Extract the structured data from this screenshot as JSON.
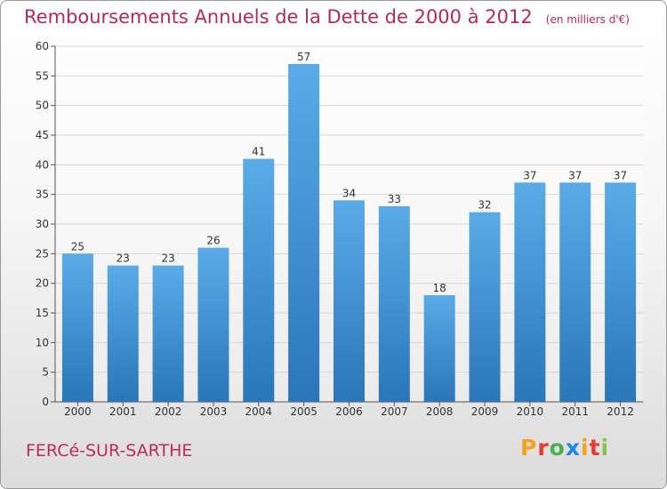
{
  "header": {
    "title": "Remboursements Annuels de la Dette de 2000 à 2012",
    "subtitle": "(en milliers d'€)"
  },
  "footer": {
    "location": "FERCé-SUR-SARTHE",
    "logo": "Proxiti",
    "logo_colors": [
      "#f7a21b",
      "#e63b2e",
      "#4caf50",
      "#1e88e5",
      "#f7a21b",
      "#e63b2e",
      "#8bc34a"
    ]
  },
  "colors": {
    "bar_top": "#5aabe8",
    "bar_bottom": "#2a76b8",
    "title": "#b5295a",
    "grid": "#d8d8d8"
  },
  "chart_data": {
    "type": "bar",
    "title": "Remboursements Annuels de la Dette de 2000 à 2012",
    "subtitle": "(en milliers d'€)",
    "xlabel": "",
    "ylabel": "",
    "categories": [
      "2000",
      "2001",
      "2002",
      "2003",
      "2004",
      "2005",
      "2006",
      "2007",
      "2008",
      "2009",
      "2010",
      "2011",
      "2012"
    ],
    "values": [
      25,
      23,
      23,
      26,
      41,
      57,
      34,
      33,
      18,
      32,
      37,
      37,
      37
    ],
    "ylim": [
      0,
      60
    ],
    "yticks": [
      0,
      5,
      10,
      15,
      20,
      25,
      30,
      35,
      40,
      45,
      50,
      55,
      60
    ],
    "grid": true,
    "data_labels": true,
    "legend": "none"
  }
}
